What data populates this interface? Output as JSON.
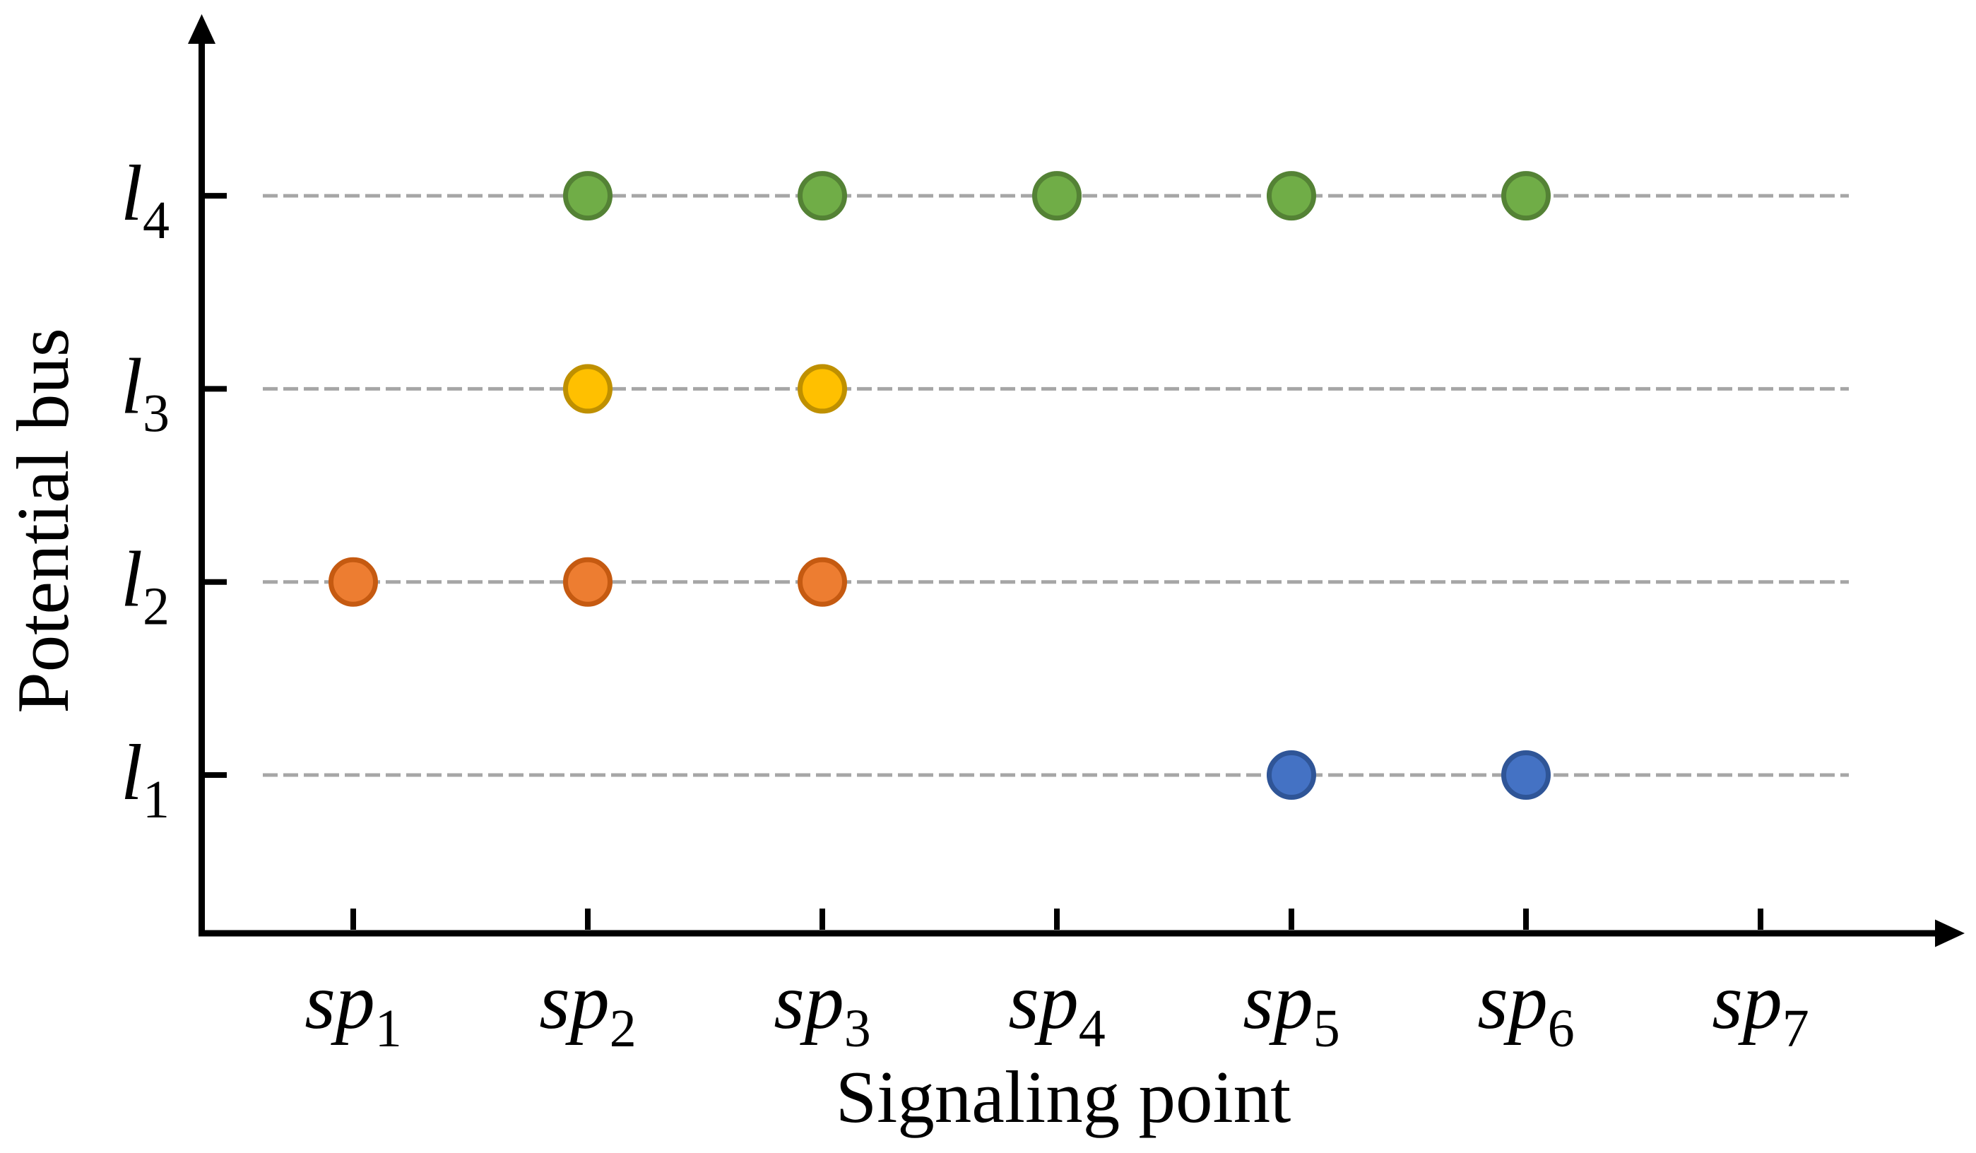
{
  "chart_data": {
    "type": "scatter",
    "title": "",
    "xlabel": "Signaling point",
    "ylabel": "Potential bus",
    "x_categories": [
      {
        "id": "sp1",
        "main": "sp",
        "sub": "1"
      },
      {
        "id": "sp2",
        "main": "sp",
        "sub": "2"
      },
      {
        "id": "sp3",
        "main": "sp",
        "sub": "3"
      },
      {
        "id": "sp4",
        "main": "sp",
        "sub": "4"
      },
      {
        "id": "sp5",
        "main": "sp",
        "sub": "5"
      },
      {
        "id": "sp6",
        "main": "sp",
        "sub": "6"
      },
      {
        "id": "sp7",
        "main": "sp",
        "sub": "7"
      }
    ],
    "y_categories": [
      {
        "id": "l1",
        "main": "l",
        "sub": "1"
      },
      {
        "id": "l2",
        "main": "l",
        "sub": "2"
      },
      {
        "id": "l3",
        "main": "l",
        "sub": "3"
      },
      {
        "id": "l4",
        "main": "l",
        "sub": "4"
      }
    ],
    "series": [
      {
        "name": "bus l1",
        "bus": "l1",
        "fill_color": "#4472C4",
        "border_color": "#2F5597",
        "points": [
          "sp5",
          "sp6"
        ]
      },
      {
        "name": "bus l2",
        "bus": "l2",
        "fill_color": "#ED7D31",
        "border_color": "#C55A11",
        "points": [
          "sp1",
          "sp2",
          "sp3"
        ]
      },
      {
        "name": "bus l3",
        "bus": "l3",
        "fill_color": "#FFC000",
        "border_color": "#BF9000",
        "points": [
          "sp2",
          "sp3"
        ]
      },
      {
        "name": "bus l4",
        "bus": "l4",
        "fill_color": "#70AD47",
        "border_color": "#548235",
        "points": [
          "sp2",
          "sp3",
          "sp4",
          "sp5",
          "sp6"
        ]
      }
    ],
    "marker": "circle",
    "grid": {
      "orientation": "horizontal",
      "style": "dashed",
      "color": "#A6A6A6"
    },
    "axis_color": "#000000",
    "legend": "none"
  }
}
